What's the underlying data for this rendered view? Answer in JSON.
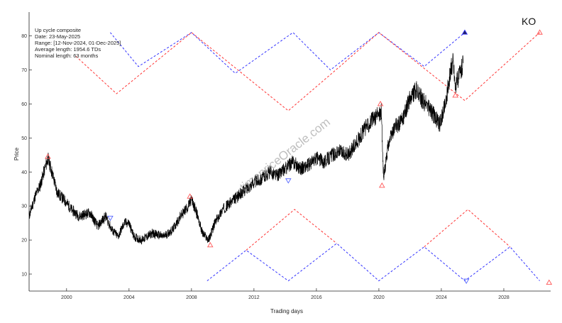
{
  "chart_data": {
    "type": "line",
    "ticker": "KO",
    "watermark": "timepriceOracle.com",
    "xlabel": "Trading days",
    "ylabel": "Price",
    "xlim": [
      1997.6,
      2031.0
    ],
    "ylim": [
      5,
      87
    ],
    "x_ticks": [
      2000,
      2004,
      2008,
      2012,
      2016,
      2020,
      2024,
      2028
    ],
    "y_ticks": [
      10,
      20,
      30,
      40,
      50,
      60,
      70,
      80
    ],
    "legend_lines": [
      "Up cycle composite",
      "Date: 23-May-2025",
      "Range: [12-Nov-2024, 01-Dec-2025]",
      "Average length: 1954.6 TDs",
      "Nominal length: 63 months"
    ],
    "colors": {
      "price": "#000000",
      "cycle_up": "#3333ff",
      "cycle_down": "#ff3333",
      "marker_peak": "#ff5555",
      "marker_trough": "#5566ff"
    },
    "price_anchors": {
      "x": [
        1997.6,
        1998.0,
        1998.3,
        1998.8,
        1999.0,
        1999.4,
        2000.0,
        2000.3,
        2000.8,
        2001.5,
        2002.0,
        2002.5,
        2002.9,
        2003.3,
        2003.7,
        2004.0,
        2004.3,
        2004.8,
        2005.5,
        2006.2,
        2006.8,
        2007.3,
        2007.8,
        2008.0,
        2008.4,
        2008.7,
        2009.1,
        2009.5,
        2010.0,
        2010.5,
        2011.0,
        2011.5,
        2012.0,
        2012.5,
        2013.0,
        2013.5,
        2014.0,
        2014.5,
        2015.0,
        2015.5,
        2016.0,
        2016.5,
        2017.0,
        2017.5,
        2018.0,
        2018.5,
        2019.0,
        2019.5,
        2020.0,
        2020.15,
        2020.3,
        2020.6,
        2021.0,
        2021.5,
        2022.0,
        2022.4,
        2022.8,
        2023.2,
        2023.6,
        2023.9,
        2024.3,
        2024.6,
        2024.75,
        2024.9,
        2025.1,
        2025.4
      ],
      "y": [
        27,
        33,
        36,
        44,
        41,
        34,
        31,
        29,
        27,
        28,
        24,
        27,
        23,
        21,
        25,
        25,
        21,
        20,
        22,
        21,
        23,
        27,
        30,
        32,
        27,
        22,
        20,
        25,
        29,
        31,
        33,
        35,
        37,
        38,
        40,
        39,
        41,
        43,
        41,
        42,
        44,
        43,
        45,
        46,
        45,
        48,
        52,
        55,
        57,
        58,
        38,
        48,
        53,
        55,
        62,
        64,
        61,
        59,
        56,
        54,
        61,
        70,
        73,
        65,
        68,
        72
      ]
    },
    "cycle_lines": [
      {
        "color": "up",
        "x": [
          2002.8,
          2004.6,
          2008.0,
          2010.8,
          2014.5,
          2016.9,
          2020.0,
          2022.9,
          2025.5
        ],
        "y": [
          81,
          71,
          81,
          69,
          81,
          70,
          81,
          71,
          81
        ]
      },
      {
        "color": "down",
        "x": [
          2000.6,
          2003.2,
          2008.0,
          2014.2,
          2017.5,
          2020.0,
          2025.5,
          2030.3
        ],
        "y": [
          74,
          63,
          81,
          58,
          71,
          81,
          61,
          81
        ]
      },
      {
        "color": "up",
        "x": [
          2009.0,
          2011.5,
          2014.2,
          2017.3,
          2020.0,
          2022.9,
          2025.5,
          2028.4,
          2030.3
        ],
        "y": [
          8,
          17,
          8,
          19,
          8,
          18,
          8,
          18,
          8
        ]
      },
      {
        "color": "down",
        "x": [
          2011.5,
          2014.6,
          2017.3
        ],
        "y": [
          17,
          29,
          19
        ]
      },
      {
        "color": "down",
        "x": [
          2022.9,
          2025.7,
          2028.4
        ],
        "y": [
          18,
          29,
          18
        ]
      }
    ],
    "markers": [
      {
        "x": 1998.8,
        "y": 44.5,
        "kind": "peak"
      },
      {
        "x": 2002.8,
        "y": 26.5,
        "kind": "trough"
      },
      {
        "x": 2007.9,
        "y": 32.8,
        "kind": "peak"
      },
      {
        "x": 2009.2,
        "y": 18.5,
        "kind": "peak"
      },
      {
        "x": 2014.2,
        "y": 37.5,
        "kind": "trough"
      },
      {
        "x": 2020.1,
        "y": 60.0,
        "kind": "peak"
      },
      {
        "x": 2020.2,
        "y": 36.0,
        "kind": "peak"
      },
      {
        "x": 2024.9,
        "y": 62.5,
        "kind": "peak"
      },
      {
        "x": 2025.5,
        "y": 81.0,
        "kind": "trough-filled"
      },
      {
        "x": 2025.6,
        "y": 8.0,
        "kind": "trough"
      },
      {
        "x": 2030.3,
        "y": 81.0,
        "kind": "peak"
      },
      {
        "x": 2030.9,
        "y": 7.5,
        "kind": "peak"
      }
    ]
  }
}
